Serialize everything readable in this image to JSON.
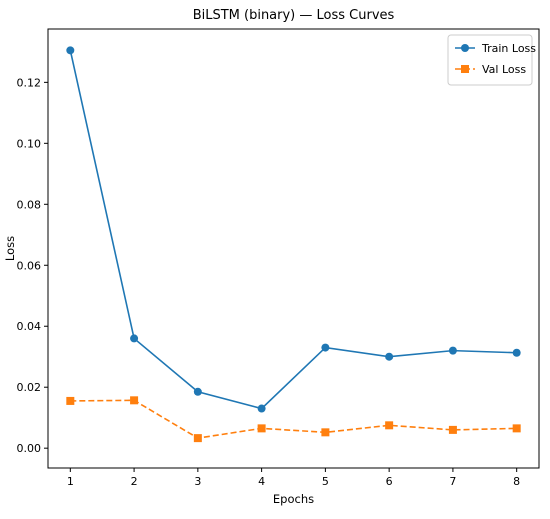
{
  "chart_data": {
    "type": "line",
    "title": "BiLSTM (binary) — Loss Curves",
    "xlabel": "Epochs",
    "ylabel": "Loss",
    "x": [
      1,
      2,
      3,
      4,
      5,
      6,
      7,
      8
    ],
    "xticks": [
      "1",
      "2",
      "3",
      "4",
      "5",
      "6",
      "7",
      "8"
    ],
    "yticks": [
      "0.00",
      "0.02",
      "0.04",
      "0.06",
      "0.08",
      "0.10",
      "0.12"
    ],
    "xlim": [
      0.65,
      8.35
    ],
    "ylim": [
      -0.0065,
      0.1375
    ],
    "grid": false,
    "legend_position": "top-right",
    "series": [
      {
        "name": "Train Loss",
        "values": [
          0.1305,
          0.036,
          0.0185,
          0.013,
          0.033,
          0.03,
          0.032,
          0.0313
        ],
        "color": "#1f77b4",
        "line_style": "solid",
        "marker": "circle"
      },
      {
        "name": "Val Loss",
        "values": [
          0.0155,
          0.0157,
          0.0033,
          0.0065,
          0.0052,
          0.0075,
          0.006,
          0.0065
        ],
        "color": "#ff7f0e",
        "line_style": "dashed",
        "marker": "square"
      }
    ]
  }
}
